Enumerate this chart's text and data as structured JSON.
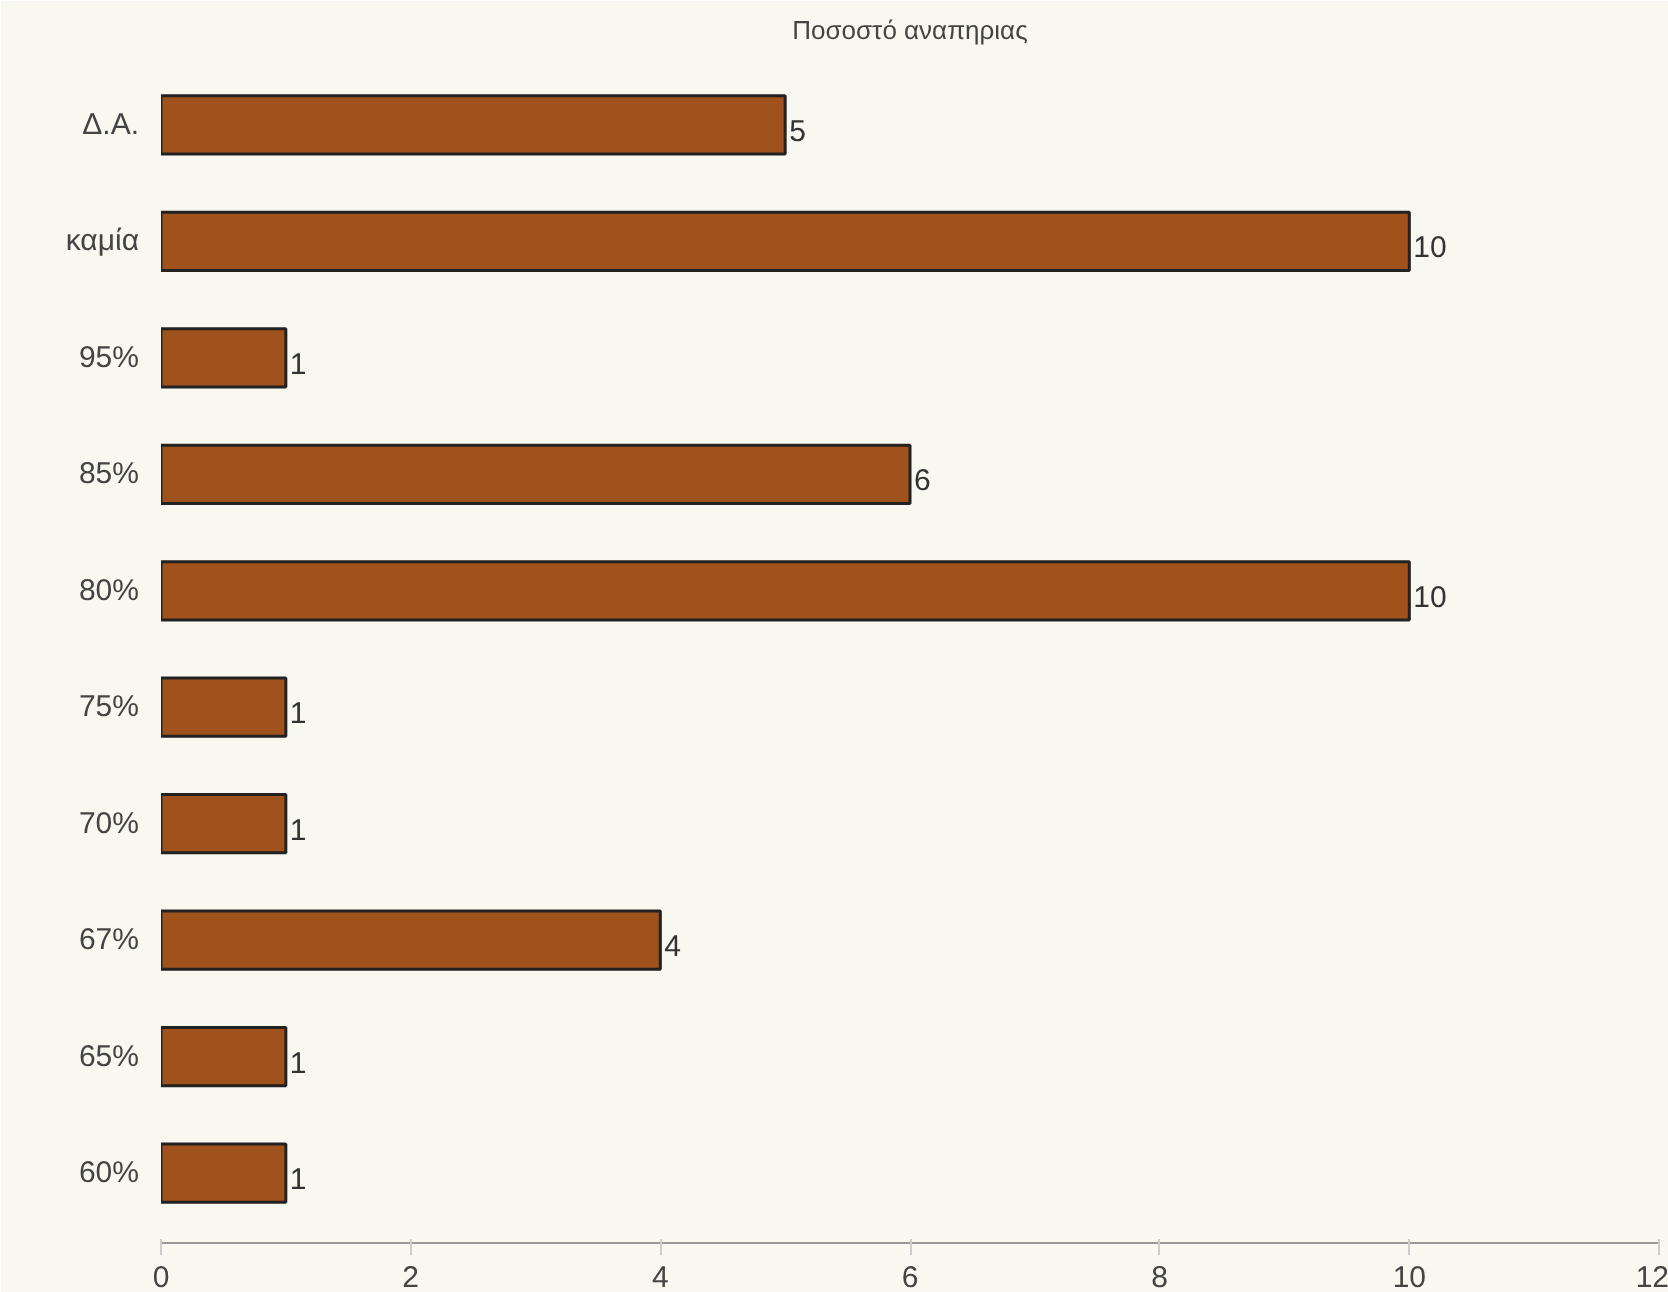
{
  "chart_data": {
    "type": "bar",
    "orientation": "horizontal",
    "title": "Ποσοστό αναπηριας",
    "categories": [
      "Δ.Α.",
      "καμία",
      "95%",
      "85%",
      "80%",
      "75%",
      "70%",
      "67%",
      "65%",
      "60%"
    ],
    "values": [
      5,
      10,
      1,
      6,
      10,
      1,
      1,
      4,
      1,
      1
    ],
    "color": "#a0521d",
    "xlim": [
      0,
      12
    ],
    "xticks": [
      0,
      2,
      4,
      6,
      8,
      10,
      12
    ],
    "grid": false,
    "data_labels": true
  }
}
